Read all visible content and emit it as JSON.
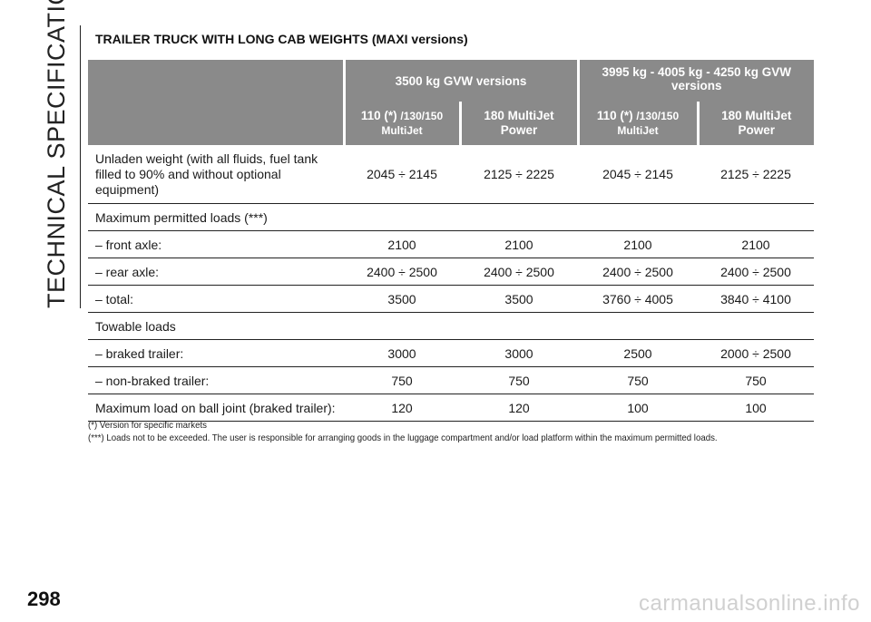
{
  "side_title": "TECHNICAL SPECIFICATIONS",
  "page_number": "298",
  "watermark": "carmanualsonline.info",
  "section_title": "TRAILER TRUCK WITH LONG CAB WEIGHTS (MAXI versions)",
  "groups": [
    "3500 kg GVW versions",
    "3995 kg - 4005 kg - 4250 kg GVW versions"
  ],
  "columns": [
    {
      "main": "110 (*)",
      "sub": "/130/150",
      "line2": "MultiJet"
    },
    {
      "main": "180 MultiJet",
      "line2": "Power"
    },
    {
      "main": "110 (*)",
      "sub": "/130/150",
      "line2": "MultiJet"
    },
    {
      "main": "180 MultiJet",
      "line2": "Power"
    }
  ],
  "rows": [
    {
      "label": "Unladen weight (with all fluids, fuel tank filled to 90% and without optional equipment)",
      "values": [
        "2045 ÷ 2145",
        "2125 ÷ 2225",
        "2045 ÷ 2145",
        "2125 ÷ 2225"
      ]
    },
    {
      "label": "Maximum permitted loads (***)",
      "values": [
        "",
        "",
        "",
        ""
      ]
    },
    {
      "label": "– front axle:",
      "values": [
        "2100",
        "2100",
        "2100",
        "2100"
      ]
    },
    {
      "label": "– rear axle:",
      "values": [
        "2400 ÷ 2500",
        "2400 ÷ 2500",
        "2400 ÷ 2500",
        "2400 ÷ 2500"
      ]
    },
    {
      "label": "– total:",
      "values": [
        "3500",
        "3500",
        "3760 ÷ 4005",
        "3840 ÷ 4100"
      ]
    },
    {
      "label": "Towable loads",
      "values": [
        "",
        "",
        "",
        ""
      ]
    },
    {
      "label": "– braked trailer:",
      "values": [
        "3000",
        "3000",
        "2500",
        "2000 ÷ 2500"
      ]
    },
    {
      "label": "– non-braked trailer:",
      "values": [
        "750",
        "750",
        "750",
        "750"
      ]
    },
    {
      "label": "Maximum load on ball joint (braked trailer):",
      "values": [
        "120",
        "120",
        "100",
        "100"
      ]
    }
  ],
  "footnotes": [
    "(*) Version for specific markets",
    "(***) Loads not to be exceeded. The user is responsible for arranging goods in the luggage compartment and/or load platform within the maximum permitted loads."
  ]
}
